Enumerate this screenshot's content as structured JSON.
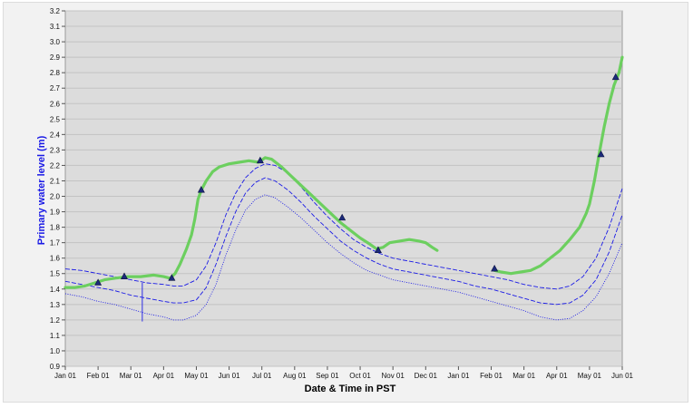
{
  "chart_data": {
    "type": "line",
    "title": "",
    "xlabel": "Date & Time in PST",
    "ylabel": "Primary water level (m)",
    "ylim": [
      0.9,
      3.2
    ],
    "yticks": [
      "0.9",
      "1.0",
      "1.1",
      "1.2",
      "1.3",
      "1.4",
      "1.5",
      "1.6",
      "1.7",
      "1.8",
      "1.9",
      "2.0",
      "2.1",
      "2.2",
      "2.3",
      "2.4",
      "2.5",
      "2.6",
      "2.7",
      "2.8",
      "2.9",
      "3.0",
      "3.1",
      "3.2"
    ],
    "xticks": [
      "Jan 01",
      "Feb 01",
      "Mar 01",
      "Apr 01",
      "May 01",
      "Jun 01",
      "Jul 01",
      "Aug 01",
      "Sep 01",
      "Oct 01",
      "Nov 01",
      "Dec 01",
      "Jan 01",
      "Feb 01",
      "Mar 01",
      "Apr 01",
      "May 01",
      "Jun 01"
    ],
    "x_month_index_range": [
      0,
      17
    ],
    "grid": true,
    "colors": {
      "plot_background": "#dcdcdc",
      "gridline": "#c3c3c3",
      "observed_line": "#6ccf5f",
      "band_lines": "#1a1ae6",
      "markers": "#1c2a7a",
      "ylabel": "#1a1ae6",
      "xlabel": "#000000"
    },
    "series": [
      {
        "style": "solid-thick-green",
        "segment": 1,
        "points": [
          [
            0.0,
            1.41
          ],
          [
            0.3,
            1.41
          ],
          [
            0.6,
            1.42
          ],
          [
            0.9,
            1.44
          ],
          [
            1.2,
            1.46
          ],
          [
            1.5,
            1.47
          ],
          [
            1.9,
            1.48
          ],
          [
            2.3,
            1.48
          ],
          [
            2.7,
            1.49
          ],
          [
            3.0,
            1.48
          ],
          [
            3.2,
            1.47
          ],
          [
            3.35,
            1.5
          ],
          [
            3.5,
            1.56
          ],
          [
            3.7,
            1.66
          ],
          [
            3.85,
            1.75
          ],
          [
            3.95,
            1.85
          ],
          [
            4.05,
            1.98
          ],
          [
            4.15,
            2.04
          ],
          [
            4.3,
            2.1
          ],
          [
            4.5,
            2.16
          ],
          [
            4.7,
            2.19
          ],
          [
            5.0,
            2.21
          ],
          [
            5.3,
            2.22
          ],
          [
            5.6,
            2.23
          ],
          [
            5.9,
            2.22
          ],
          [
            6.1,
            2.25
          ],
          [
            6.3,
            2.24
          ],
          [
            6.6,
            2.19
          ],
          [
            6.9,
            2.13
          ],
          [
            7.2,
            2.07
          ],
          [
            7.5,
            2.01
          ],
          [
            7.8,
            1.95
          ],
          [
            8.1,
            1.89
          ],
          [
            8.4,
            1.83
          ],
          [
            8.7,
            1.78
          ],
          [
            9.0,
            1.73
          ],
          [
            9.3,
            1.69
          ],
          [
            9.5,
            1.66
          ],
          [
            9.7,
            1.67
          ],
          [
            9.9,
            1.7
          ],
          [
            10.2,
            1.71
          ],
          [
            10.5,
            1.72
          ],
          [
            10.8,
            1.71
          ],
          [
            11.0,
            1.7
          ],
          [
            11.2,
            1.67
          ],
          [
            11.35,
            1.65
          ]
        ]
      },
      {
        "style": "solid-thick-green",
        "segment": 2,
        "points": [
          [
            13.1,
            1.52
          ],
          [
            13.3,
            1.51
          ],
          [
            13.6,
            1.5
          ],
          [
            13.9,
            1.51
          ],
          [
            14.2,
            1.52
          ],
          [
            14.5,
            1.55
          ],
          [
            14.8,
            1.6
          ],
          [
            15.1,
            1.65
          ],
          [
            15.4,
            1.72
          ],
          [
            15.7,
            1.8
          ],
          [
            15.9,
            1.89
          ],
          [
            16.0,
            1.95
          ],
          [
            16.15,
            2.1
          ],
          [
            16.3,
            2.28
          ],
          [
            16.45,
            2.45
          ],
          [
            16.6,
            2.6
          ],
          [
            16.75,
            2.72
          ],
          [
            16.9,
            2.8
          ],
          [
            17.0,
            2.9
          ]
        ]
      },
      {
        "style": "dashed-blue-upper",
        "points": [
          [
            0.0,
            1.53
          ],
          [
            0.5,
            1.52
          ],
          [
            1.0,
            1.5
          ],
          [
            1.5,
            1.48
          ],
          [
            2.0,
            1.46
          ],
          [
            2.5,
            1.44
          ],
          [
            3.0,
            1.43
          ],
          [
            3.3,
            1.42
          ],
          [
            3.6,
            1.42
          ],
          [
            4.0,
            1.46
          ],
          [
            4.3,
            1.55
          ],
          [
            4.6,
            1.7
          ],
          [
            4.9,
            1.88
          ],
          [
            5.2,
            2.02
          ],
          [
            5.5,
            2.12
          ],
          [
            5.8,
            2.18
          ],
          [
            6.1,
            2.21
          ],
          [
            6.4,
            2.2
          ],
          [
            6.8,
            2.15
          ],
          [
            7.2,
            2.06
          ],
          [
            7.6,
            1.96
          ],
          [
            8.0,
            1.87
          ],
          [
            8.4,
            1.79
          ],
          [
            8.8,
            1.72
          ],
          [
            9.2,
            1.67
          ],
          [
            9.6,
            1.63
          ],
          [
            10.0,
            1.6
          ],
          [
            10.5,
            1.58
          ],
          [
            11.0,
            1.56
          ],
          [
            11.5,
            1.54
          ],
          [
            12.0,
            1.52
          ],
          [
            12.5,
            1.5
          ],
          [
            13.0,
            1.48
          ],
          [
            13.5,
            1.46
          ],
          [
            14.0,
            1.43
          ],
          [
            14.5,
            1.41
          ],
          [
            15.0,
            1.4
          ],
          [
            15.4,
            1.42
          ],
          [
            15.8,
            1.48
          ],
          [
            16.2,
            1.6
          ],
          [
            16.6,
            1.8
          ],
          [
            17.0,
            2.05
          ]
        ]
      },
      {
        "style": "dashed-blue-middle",
        "points": [
          [
            0.0,
            1.45
          ],
          [
            0.5,
            1.43
          ],
          [
            1.0,
            1.41
          ],
          [
            1.5,
            1.39
          ],
          [
            2.0,
            1.36
          ],
          [
            2.5,
            1.34
          ],
          [
            3.0,
            1.32
          ],
          [
            3.3,
            1.31
          ],
          [
            3.6,
            1.31
          ],
          [
            4.0,
            1.33
          ],
          [
            4.3,
            1.41
          ],
          [
            4.6,
            1.56
          ],
          [
            4.9,
            1.74
          ],
          [
            5.2,
            1.9
          ],
          [
            5.5,
            2.02
          ],
          [
            5.8,
            2.09
          ],
          [
            6.1,
            2.12
          ],
          [
            6.4,
            2.1
          ],
          [
            6.8,
            2.04
          ],
          [
            7.2,
            1.96
          ],
          [
            7.6,
            1.87
          ],
          [
            8.0,
            1.79
          ],
          [
            8.4,
            1.71
          ],
          [
            8.8,
            1.65
          ],
          [
            9.2,
            1.6
          ],
          [
            9.6,
            1.56
          ],
          [
            10.0,
            1.53
          ],
          [
            10.5,
            1.51
          ],
          [
            11.0,
            1.49
          ],
          [
            11.5,
            1.47
          ],
          [
            12.0,
            1.45
          ],
          [
            12.5,
            1.42
          ],
          [
            13.0,
            1.4
          ],
          [
            13.5,
            1.37
          ],
          [
            14.0,
            1.34
          ],
          [
            14.5,
            1.31
          ],
          [
            15.0,
            1.3
          ],
          [
            15.4,
            1.31
          ],
          [
            15.8,
            1.36
          ],
          [
            16.2,
            1.46
          ],
          [
            16.6,
            1.64
          ],
          [
            17.0,
            1.88
          ]
        ]
      },
      {
        "style": "dotted-blue-lower",
        "points": [
          [
            0.0,
            1.37
          ],
          [
            0.5,
            1.35
          ],
          [
            1.0,
            1.32
          ],
          [
            1.5,
            1.3
          ],
          [
            2.0,
            1.27
          ],
          [
            2.5,
            1.24
          ],
          [
            3.0,
            1.22
          ],
          [
            3.3,
            1.2
          ],
          [
            3.6,
            1.2
          ],
          [
            4.0,
            1.23
          ],
          [
            4.3,
            1.3
          ],
          [
            4.6,
            1.43
          ],
          [
            4.9,
            1.62
          ],
          [
            5.2,
            1.78
          ],
          [
            5.5,
            1.91
          ],
          [
            5.8,
            1.98
          ],
          [
            6.1,
            2.01
          ],
          [
            6.4,
            1.99
          ],
          [
            6.8,
            1.93
          ],
          [
            7.2,
            1.86
          ],
          [
            7.6,
            1.78
          ],
          [
            8.0,
            1.7
          ],
          [
            8.4,
            1.63
          ],
          [
            8.8,
            1.57
          ],
          [
            9.2,
            1.52
          ],
          [
            9.6,
            1.49
          ],
          [
            10.0,
            1.46
          ],
          [
            10.5,
            1.44
          ],
          [
            11.0,
            1.42
          ],
          [
            11.5,
            1.4
          ],
          [
            12.0,
            1.38
          ],
          [
            12.5,
            1.35
          ],
          [
            13.0,
            1.32
          ],
          [
            13.5,
            1.29
          ],
          [
            14.0,
            1.26
          ],
          [
            14.5,
            1.22
          ],
          [
            15.0,
            1.2
          ],
          [
            15.4,
            1.21
          ],
          [
            15.8,
            1.26
          ],
          [
            16.2,
            1.35
          ],
          [
            16.6,
            1.5
          ],
          [
            17.0,
            1.7
          ]
        ]
      }
    ],
    "spikes": [
      [
        2.35,
        1.44,
        1.19
      ]
    ],
    "markers": [
      [
        1.0,
        1.44
      ],
      [
        1.8,
        1.48
      ],
      [
        3.25,
        1.47
      ],
      [
        4.15,
        2.04
      ],
      [
        5.95,
        2.23
      ],
      [
        8.45,
        1.86
      ],
      [
        9.55,
        1.65
      ],
      [
        13.1,
        1.53
      ],
      [
        16.35,
        2.27
      ],
      [
        16.8,
        2.77
      ]
    ]
  }
}
